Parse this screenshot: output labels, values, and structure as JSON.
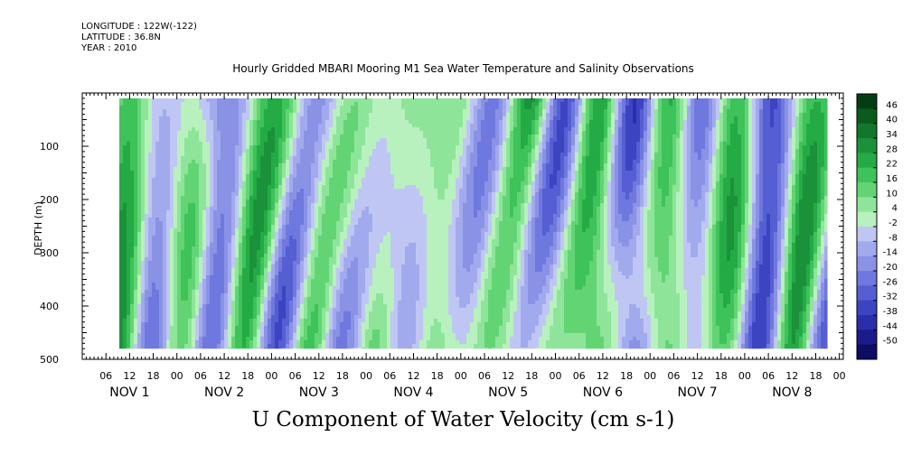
{
  "header": {
    "longitude": "LONGITUDE : 122W(-122)",
    "latitude": "LATITUDE : 36.8N",
    "year": "YEAR : 2010"
  },
  "chart_data": {
    "type": "heatmap",
    "title": "Hourly Gridded MBARI Mooring M1 Sea Water Temperature and Salinity Observations",
    "xlabel": "U Component of Water Velocity (cm s-1)",
    "ylabel": "DEPTH (m)",
    "x_axis": {
      "unit": "hours",
      "range_hours_from_nov1_00": [
        -24,
        169
      ],
      "hour_tick_labels": [
        {
          "hour": -18,
          "label": "06"
        },
        {
          "hour": -12,
          "label": "12"
        },
        {
          "hour": -6,
          "label": "18"
        },
        {
          "hour": 0,
          "label": "00"
        },
        {
          "hour": 6,
          "label": "06"
        },
        {
          "hour": 12,
          "label": "12"
        },
        {
          "hour": 18,
          "label": "18"
        },
        {
          "hour": 24,
          "label": "00"
        },
        {
          "hour": 30,
          "label": "06"
        },
        {
          "hour": 36,
          "label": "12"
        },
        {
          "hour": 42,
          "label": "18"
        },
        {
          "hour": 48,
          "label": "00"
        },
        {
          "hour": 54,
          "label": "06"
        },
        {
          "hour": 60,
          "label": "12"
        },
        {
          "hour": 66,
          "label": "18"
        },
        {
          "hour": 72,
          "label": "00"
        },
        {
          "hour": 78,
          "label": "06"
        },
        {
          "hour": 84,
          "label": "12"
        },
        {
          "hour": 90,
          "label": "18"
        },
        {
          "hour": 96,
          "label": "00"
        },
        {
          "hour": 102,
          "label": "06"
        },
        {
          "hour": 108,
          "label": "12"
        },
        {
          "hour": 114,
          "label": "18"
        },
        {
          "hour": 120,
          "label": "00"
        },
        {
          "hour": 126,
          "label": "06"
        },
        {
          "hour": 132,
          "label": "12"
        },
        {
          "hour": 138,
          "label": "18"
        },
        {
          "hour": 144,
          "label": "00"
        },
        {
          "hour": 150,
          "label": "06"
        },
        {
          "hour": 156,
          "label": "12"
        },
        {
          "hour": 162,
          "label": "18"
        },
        {
          "hour": 168,
          "label": "00"
        }
      ],
      "day_labels": [
        {
          "hour": -12,
          "label": "NOV  1"
        },
        {
          "hour": 12,
          "label": "NOV  2"
        },
        {
          "hour": 36,
          "label": "NOV  3"
        },
        {
          "hour": 60,
          "label": "NOV  4"
        },
        {
          "hour": 84,
          "label": "NOV  5"
        },
        {
          "hour": 108,
          "label": "NOV  6"
        },
        {
          "hour": 132,
          "label": "NOV  7"
        },
        {
          "hour": 156,
          "label": "NOV  8"
        }
      ],
      "data_start_hour": -14.6,
      "data_end_hour": 165
    },
    "y_axis": {
      "range": [
        500,
        0
      ],
      "ticks": [
        100,
        200,
        300,
        400,
        500
      ],
      "minor_step": 50,
      "data_top_depth": 10,
      "data_bottom_depth": 480
    },
    "colorbar": {
      "labels": [
        "46",
        "40",
        "34",
        "28",
        "22",
        "16",
        "10",
        "4",
        "-2",
        "-8",
        "-14",
        "-20",
        "-26",
        "-32",
        "-38",
        "-44",
        "-50"
      ],
      "colors": [
        "#053d12",
        "#0b5b1c",
        "#12772a",
        "#1b923a",
        "#24ab45",
        "#3ec25a",
        "#63d474",
        "#8ee59a",
        "#b8f1be",
        "#c0c6f4",
        "#a2aaee",
        "#8a92e6",
        "#6f78de",
        "#565ed3",
        "#3c44c2",
        "#2a2eaa",
        "#1b1c8a",
        "#0d0d63"
      ],
      "range": [
        -50,
        52
      ]
    },
    "field_summary": "Depth-time section of U velocity alternating between positive (green) and negative (blue) bands roughly every 6-12 hours, values mostly between -20 and +20 cm/s"
  }
}
